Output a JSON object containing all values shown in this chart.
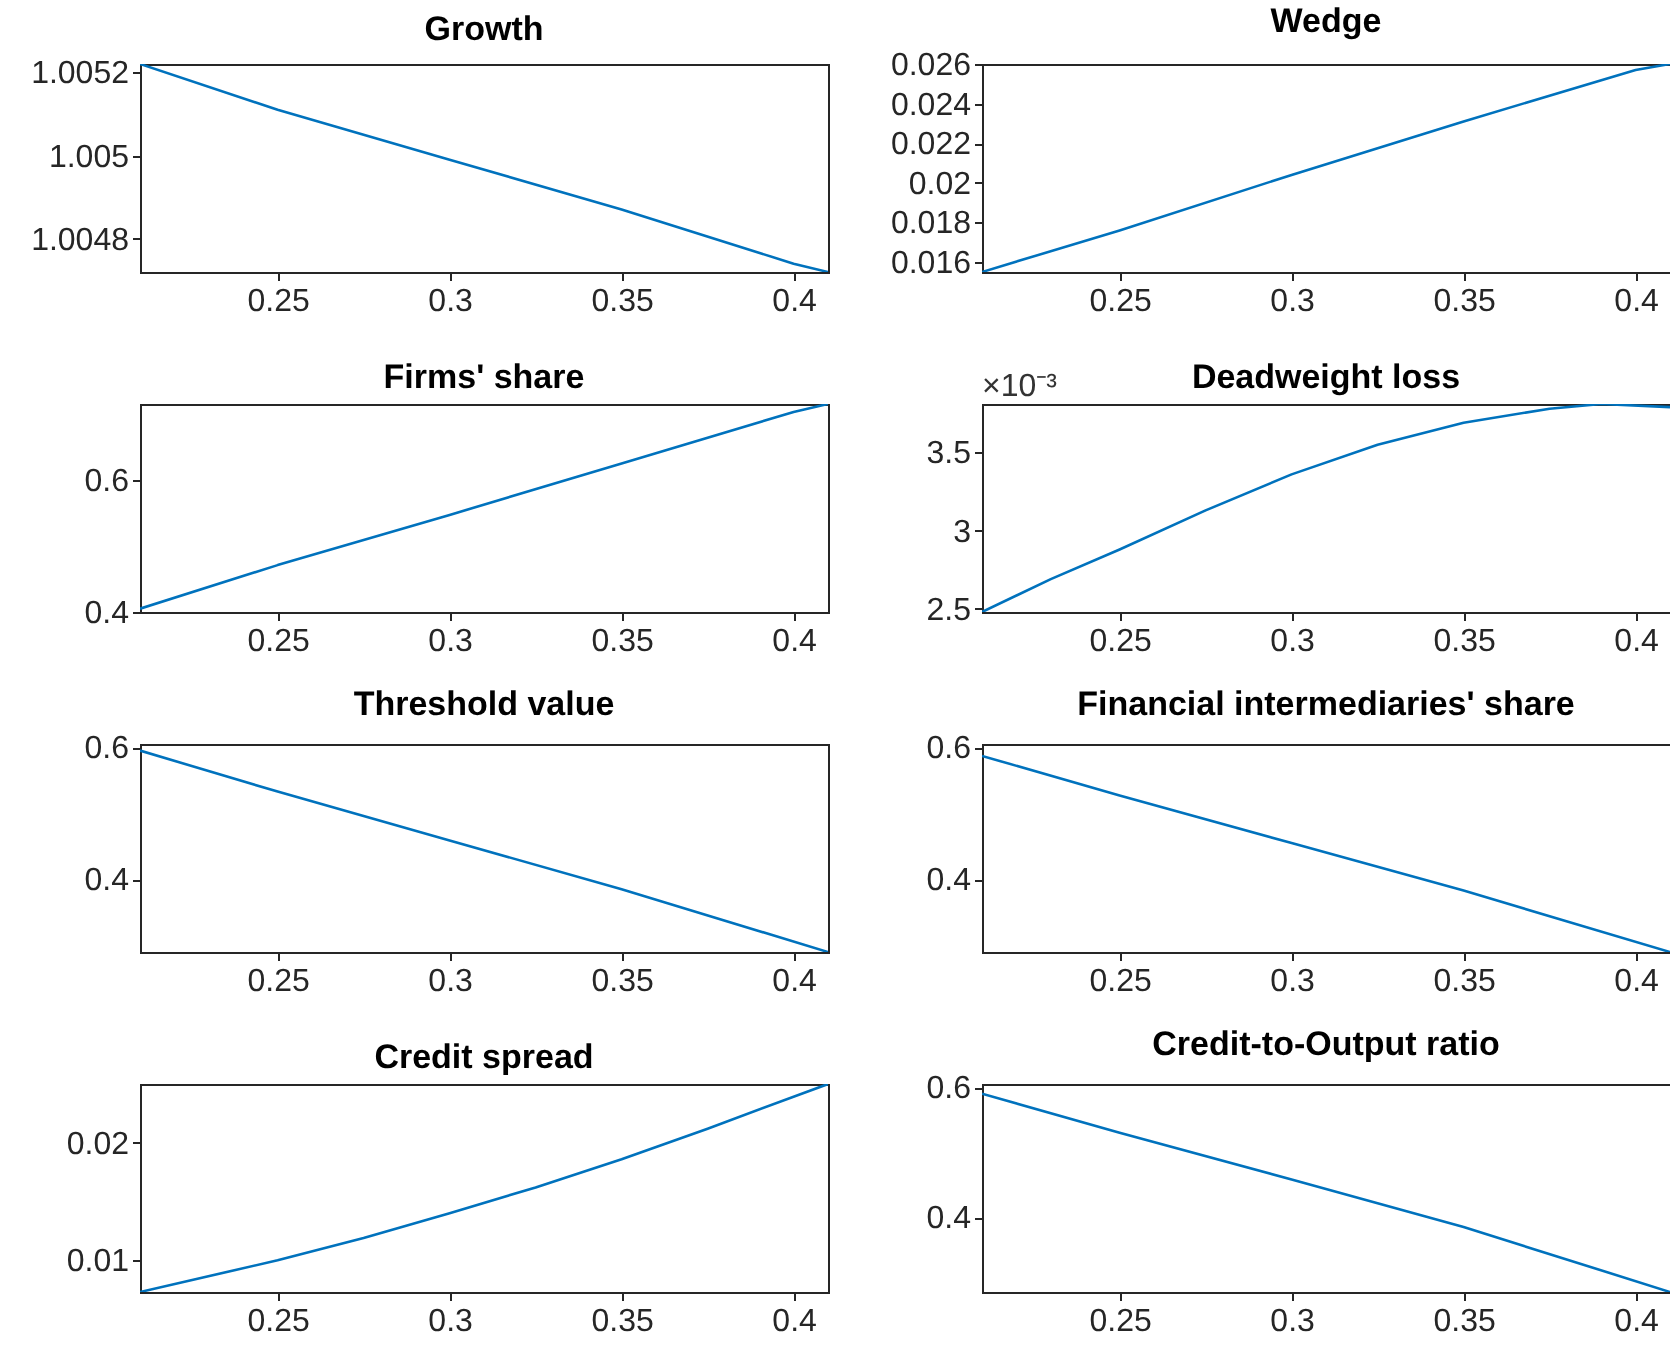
{
  "chart_data": [
    {
      "type": "line",
      "title": "Growth",
      "color": "#0072bd",
      "x": [
        0.21,
        0.25,
        0.3,
        0.35,
        0.4,
        0.41
      ],
      "values": [
        1.00522,
        1.00511,
        1.00499,
        1.00487,
        1.00474,
        1.00472
      ],
      "xlim": [
        0.21,
        0.41
      ],
      "xticks": [
        0.25,
        0.3,
        0.35,
        0.4
      ],
      "ylim": [
        1.00472,
        1.00522
      ],
      "yticks": [
        1.0048,
        1.005,
        1.0052
      ]
    },
    {
      "type": "line",
      "title": "Wedge",
      "color": "#0072bd",
      "x": [
        0.21,
        0.25,
        0.3,
        0.35,
        0.4,
        0.41
      ],
      "values": [
        0.0155,
        0.0176,
        0.0204,
        0.0231,
        0.0257,
        0.026
      ],
      "xlim": [
        0.21,
        0.41
      ],
      "xticks": [
        0.25,
        0.3,
        0.35,
        0.4
      ],
      "ylim": [
        0.0155,
        0.026
      ],
      "yticks": [
        0.016,
        0.018,
        0.02,
        0.022,
        0.024,
        0.026
      ]
    },
    {
      "type": "line",
      "title": "Firms' share",
      "color": "#0072bd",
      "x": [
        0.21,
        0.25,
        0.3,
        0.35,
        0.4,
        0.41
      ],
      "values": [
        0.405,
        0.471,
        0.547,
        0.625,
        0.703,
        0.715
      ],
      "xlim": [
        0.21,
        0.41
      ],
      "xticks": [
        0.25,
        0.3,
        0.35,
        0.4
      ],
      "ylim": [
        0.4,
        0.715
      ],
      "yticks": [
        0.4,
        0.6
      ]
    },
    {
      "type": "line",
      "title": "Deadweight loss",
      "annotations": [
        "×10⁻³"
      ],
      "color": "#0072bd",
      "x": [
        0.21,
        0.23,
        0.25,
        0.275,
        0.3,
        0.325,
        0.35,
        0.375,
        0.39,
        0.41
      ],
      "values": [
        2.48,
        2.69,
        2.88,
        3.13,
        3.36,
        3.55,
        3.69,
        3.78,
        3.81,
        3.79
      ],
      "xlim": [
        0.21,
        0.41
      ],
      "xticks": [
        0.25,
        0.3,
        0.35,
        0.4
      ],
      "ylim": [
        2.48,
        3.81
      ],
      "yticks": [
        2.5,
        3,
        3.5
      ]
    },
    {
      "type": "line",
      "title": "Threshold value",
      "color": "#0072bd",
      "x": [
        0.21,
        0.25,
        0.3,
        0.35,
        0.41
      ],
      "values": [
        0.595,
        0.533,
        0.459,
        0.385,
        0.29
      ],
      "xlim": [
        0.21,
        0.41
      ],
      "xticks": [
        0.25,
        0.3,
        0.35,
        0.4
      ],
      "ylim": [
        0.29,
        0.605
      ],
      "yticks": [
        0.4,
        0.6
      ]
    },
    {
      "type": "line",
      "title": "Financial intermediaries' share",
      "color": "#0072bd",
      "x": [
        0.21,
        0.25,
        0.3,
        0.35,
        0.41
      ],
      "values": [
        0.587,
        0.527,
        0.455,
        0.383,
        0.29
      ],
      "xlim": [
        0.21,
        0.41
      ],
      "xticks": [
        0.25,
        0.3,
        0.35,
        0.4
      ],
      "ylim": [
        0.29,
        0.605
      ],
      "yticks": [
        0.4,
        0.6
      ]
    },
    {
      "type": "line",
      "title": "Credit spread",
      "color": "#0072bd",
      "x": [
        0.21,
        0.25,
        0.275,
        0.3,
        0.325,
        0.35,
        0.375,
        0.41
      ],
      "values": [
        0.0073,
        0.01,
        0.0119,
        0.014,
        0.0162,
        0.0186,
        0.0212,
        0.025
      ],
      "xlim": [
        0.21,
        0.41
      ],
      "xticks": [
        0.25,
        0.3,
        0.35,
        0.4
      ],
      "ylim": [
        0.0073,
        0.025
      ],
      "yticks": [
        0.01,
        0.02
      ]
    },
    {
      "type": "line",
      "title": "Credit-to-Output ratio",
      "color": "#0072bd",
      "x": [
        0.21,
        0.25,
        0.3,
        0.35,
        0.41
      ],
      "values": [
        0.59,
        0.53,
        0.458,
        0.385,
        0.285
      ],
      "xlim": [
        0.21,
        0.41
      ],
      "xticks": [
        0.25,
        0.3,
        0.35,
        0.4
      ],
      "ylim": [
        0.285,
        0.605
      ],
      "yticks": [
        0.4,
        0.6
      ]
    }
  ]
}
